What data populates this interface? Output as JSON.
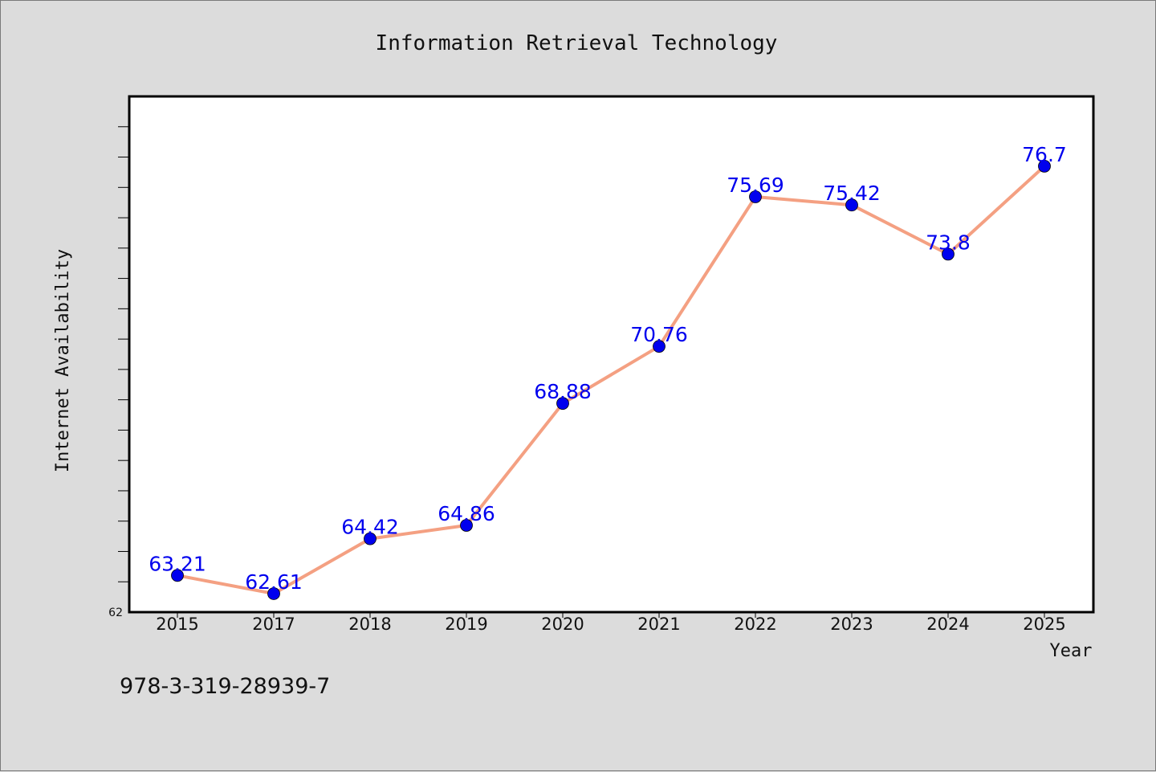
{
  "chart_data": {
    "type": "line",
    "title": "Information Retrieval Technology",
    "xlabel": "Year",
    "ylabel": "Internet Availability",
    "categories": [
      "2015",
      "2017",
      "2018",
      "2019",
      "2020",
      "2021",
      "2022",
      "2023",
      "2024",
      "2025"
    ],
    "series": [
      {
        "values": [
          63.21,
          62.61,
          64.42,
          64.86,
          68.88,
          70.76,
          75.69,
          75.42,
          73.8,
          76.7
        ]
      }
    ],
    "data_labels": [
      "63.21",
      "62.61",
      "64.42",
      "64.86",
      "68.88",
      "70.76",
      "75.69",
      "75.42",
      "73.8",
      "76.7"
    ],
    "ylim": [
      62,
      79
    ],
    "y_tick_labels": [
      "62"
    ],
    "y_minor_step": 1,
    "grid": false,
    "legend": "none",
    "line_color": "#f4a082",
    "marker_color": "#0000ee",
    "label_color": "#0000ee"
  },
  "footer": {
    "isbn": "978-3-319-28939-7"
  }
}
